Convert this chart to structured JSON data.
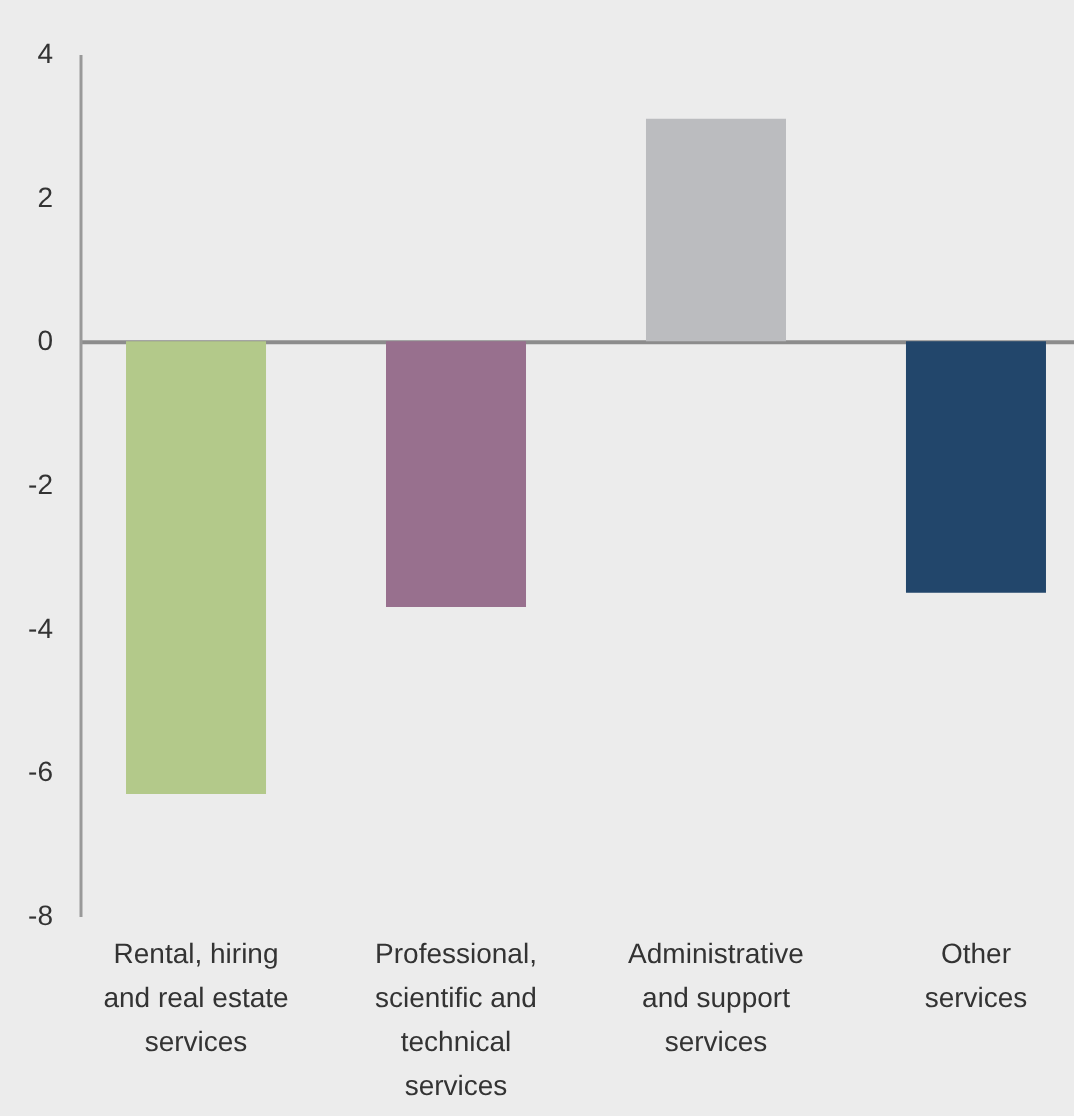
{
  "chart_data": {
    "type": "bar",
    "categories": [
      "Rental, hiring and real estate services",
      "Professional, scientific and technical services",
      "Administrative and support services",
      "Other services"
    ],
    "values": [
      -6.3,
      -3.7,
      3.1,
      -3.5
    ],
    "colors": [
      "#b3c98a",
      "#98708e",
      "#bbbcbf",
      "#22466b"
    ],
    "ylim": [
      -8,
      4
    ],
    "yticks": [
      -8,
      -6,
      -4,
      -2,
      0,
      2,
      4
    ]
  }
}
